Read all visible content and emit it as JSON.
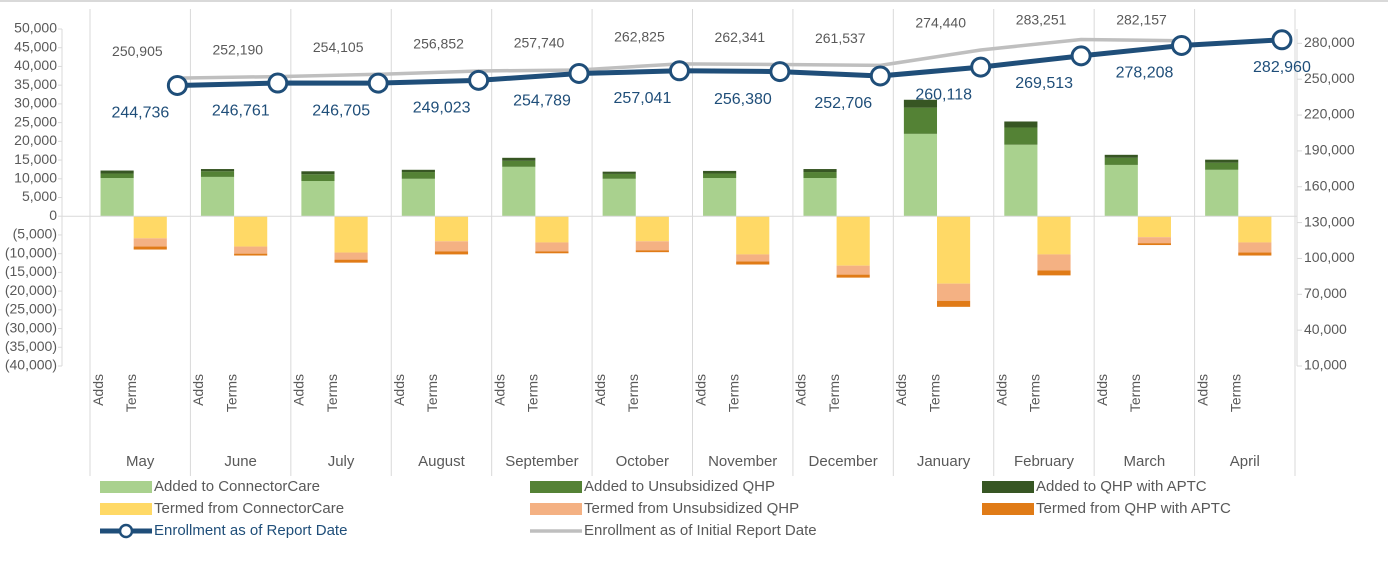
{
  "chart_data": {
    "type": "bar",
    "categories": [
      "May",
      "June",
      "July",
      "August",
      "September",
      "October",
      "November",
      "December",
      "January",
      "February",
      "March",
      "April"
    ],
    "subcategories": [
      "Adds",
      "Terms"
    ],
    "ylim": [
      -40000,
      50000
    ],
    "yticks": [
      {
        "value": -40000,
        "label": "(40,000)"
      },
      {
        "value": -35000,
        "label": "(35,000)"
      },
      {
        "value": -30000,
        "label": "(30,000)"
      },
      {
        "value": -25000,
        "label": "(25,000)"
      },
      {
        "value": -20000,
        "label": "(20,000)"
      },
      {
        "value": -15000,
        "label": "(15,000)"
      },
      {
        "value": -10000,
        "label": "(10,000)"
      },
      {
        "value": -5000,
        "label": "(5,000)"
      },
      0,
      {
        "value": 5000,
        "label": "5,000"
      },
      {
        "value": 10000,
        "label": "10,000"
      },
      {
        "value": 15000,
        "label": "15,000"
      },
      {
        "value": 20000,
        "label": "20,000"
      },
      {
        "value": 25000,
        "label": "25,000"
      },
      {
        "value": 30000,
        "label": "30,000"
      },
      {
        "value": 35000,
        "label": "35,000"
      },
      {
        "value": 40000,
        "label": "40,000"
      },
      {
        "value": 45000,
        "label": "45,000"
      },
      {
        "value": 50000,
        "label": "50,000"
      }
    ],
    "y2lim": [
      10000,
      292000
    ],
    "y2ticks": [
      {
        "value": 10000,
        "label": "10,000"
      },
      {
        "value": 40000,
        "label": "40,000"
      },
      {
        "value": 70000,
        "label": "70,000"
      },
      {
        "value": 100000,
        "label": "100,000"
      },
      {
        "value": 130000,
        "label": "130,000"
      },
      {
        "value": 160000,
        "label": "160,000"
      },
      {
        "value": 190000,
        "label": "190,000"
      },
      {
        "value": 220000,
        "label": "220,000"
      },
      {
        "value": 250000,
        "label": "250,000"
      },
      {
        "value": 280000,
        "label": "280,000"
      }
    ],
    "series": [
      {
        "name": "Added to ConnectorCare",
        "color": "#a9d18e",
        "stack": "Adds",
        "values": [
          10200,
          10500,
          9400,
          10000,
          13200,
          10000,
          10200,
          10200,
          22000,
          19100,
          13700,
          12400
        ]
      },
      {
        "name": "Added to Unsubsidized QHP",
        "color": "#548235",
        "stack": "Adds",
        "values": [
          1200,
          1500,
          1800,
          1800,
          1600,
          1300,
          1200,
          1600,
          7000,
          4600,
          1900,
          1900
        ]
      },
      {
        "name": "Added to QHP with APTC",
        "color": "#375623",
        "stack": "Adds",
        "values": [
          800,
          600,
          800,
          600,
          800,
          600,
          700,
          800,
          2100,
          1600,
          800,
          800
        ]
      },
      {
        "name": "Termed from ConnectorCare",
        "color": "#ffd966",
        "stack": "Terms",
        "values": [
          -5900,
          -8100,
          -9700,
          -6700,
          -7000,
          -6700,
          -10200,
          -13200,
          -18000,
          -10200,
          -5600,
          -7000
        ]
      },
      {
        "name": "Termed from Unsubsidized QHP",
        "color": "#f4b183",
        "stack": "Terms",
        "values": [
          -2200,
          -1900,
          -1900,
          -2700,
          -2400,
          -2400,
          -1900,
          -2400,
          -4600,
          -4300,
          -1600,
          -2700
        ]
      },
      {
        "name": "Termed from QHP with APTC",
        "color": "#e07b17",
        "stack": "Terms",
        "values": [
          -800,
          -500,
          -800,
          -800,
          -500,
          -500,
          -800,
          -800,
          -1600,
          -1300,
          -500,
          -800
        ]
      },
      {
        "name": "Enrollment as of Report Date",
        "color": "#1f4e79",
        "type": "line",
        "axis": "y2",
        "marker": true,
        "values": [
          244736,
          246761,
          246705,
          249023,
          254789,
          257041,
          256380,
          252706,
          260118,
          269513,
          278208,
          282960
        ],
        "value_labels": [
          "244,736",
          "246,761",
          "246,705",
          "249,023",
          "254,789",
          "257,041",
          "256,380",
          "252,706",
          "260,118",
          "269,513",
          "278,208",
          "282,960"
        ]
      },
      {
        "name": "Enrollment as of Initial Report Date",
        "color": "#bfbfbf",
        "type": "line",
        "axis": "y2",
        "marker": false,
        "values": [
          250905,
          252190,
          254105,
          256852,
          257740,
          262825,
          262341,
          261537,
          274440,
          283251,
          282157,
          null
        ],
        "value_labels": [
          "250,905",
          "252,190",
          "254,105",
          "256,852",
          "257,740",
          "262,825",
          "262,341",
          "261,537",
          "274,440",
          "283,251",
          "282,157",
          null
        ]
      }
    ]
  }
}
